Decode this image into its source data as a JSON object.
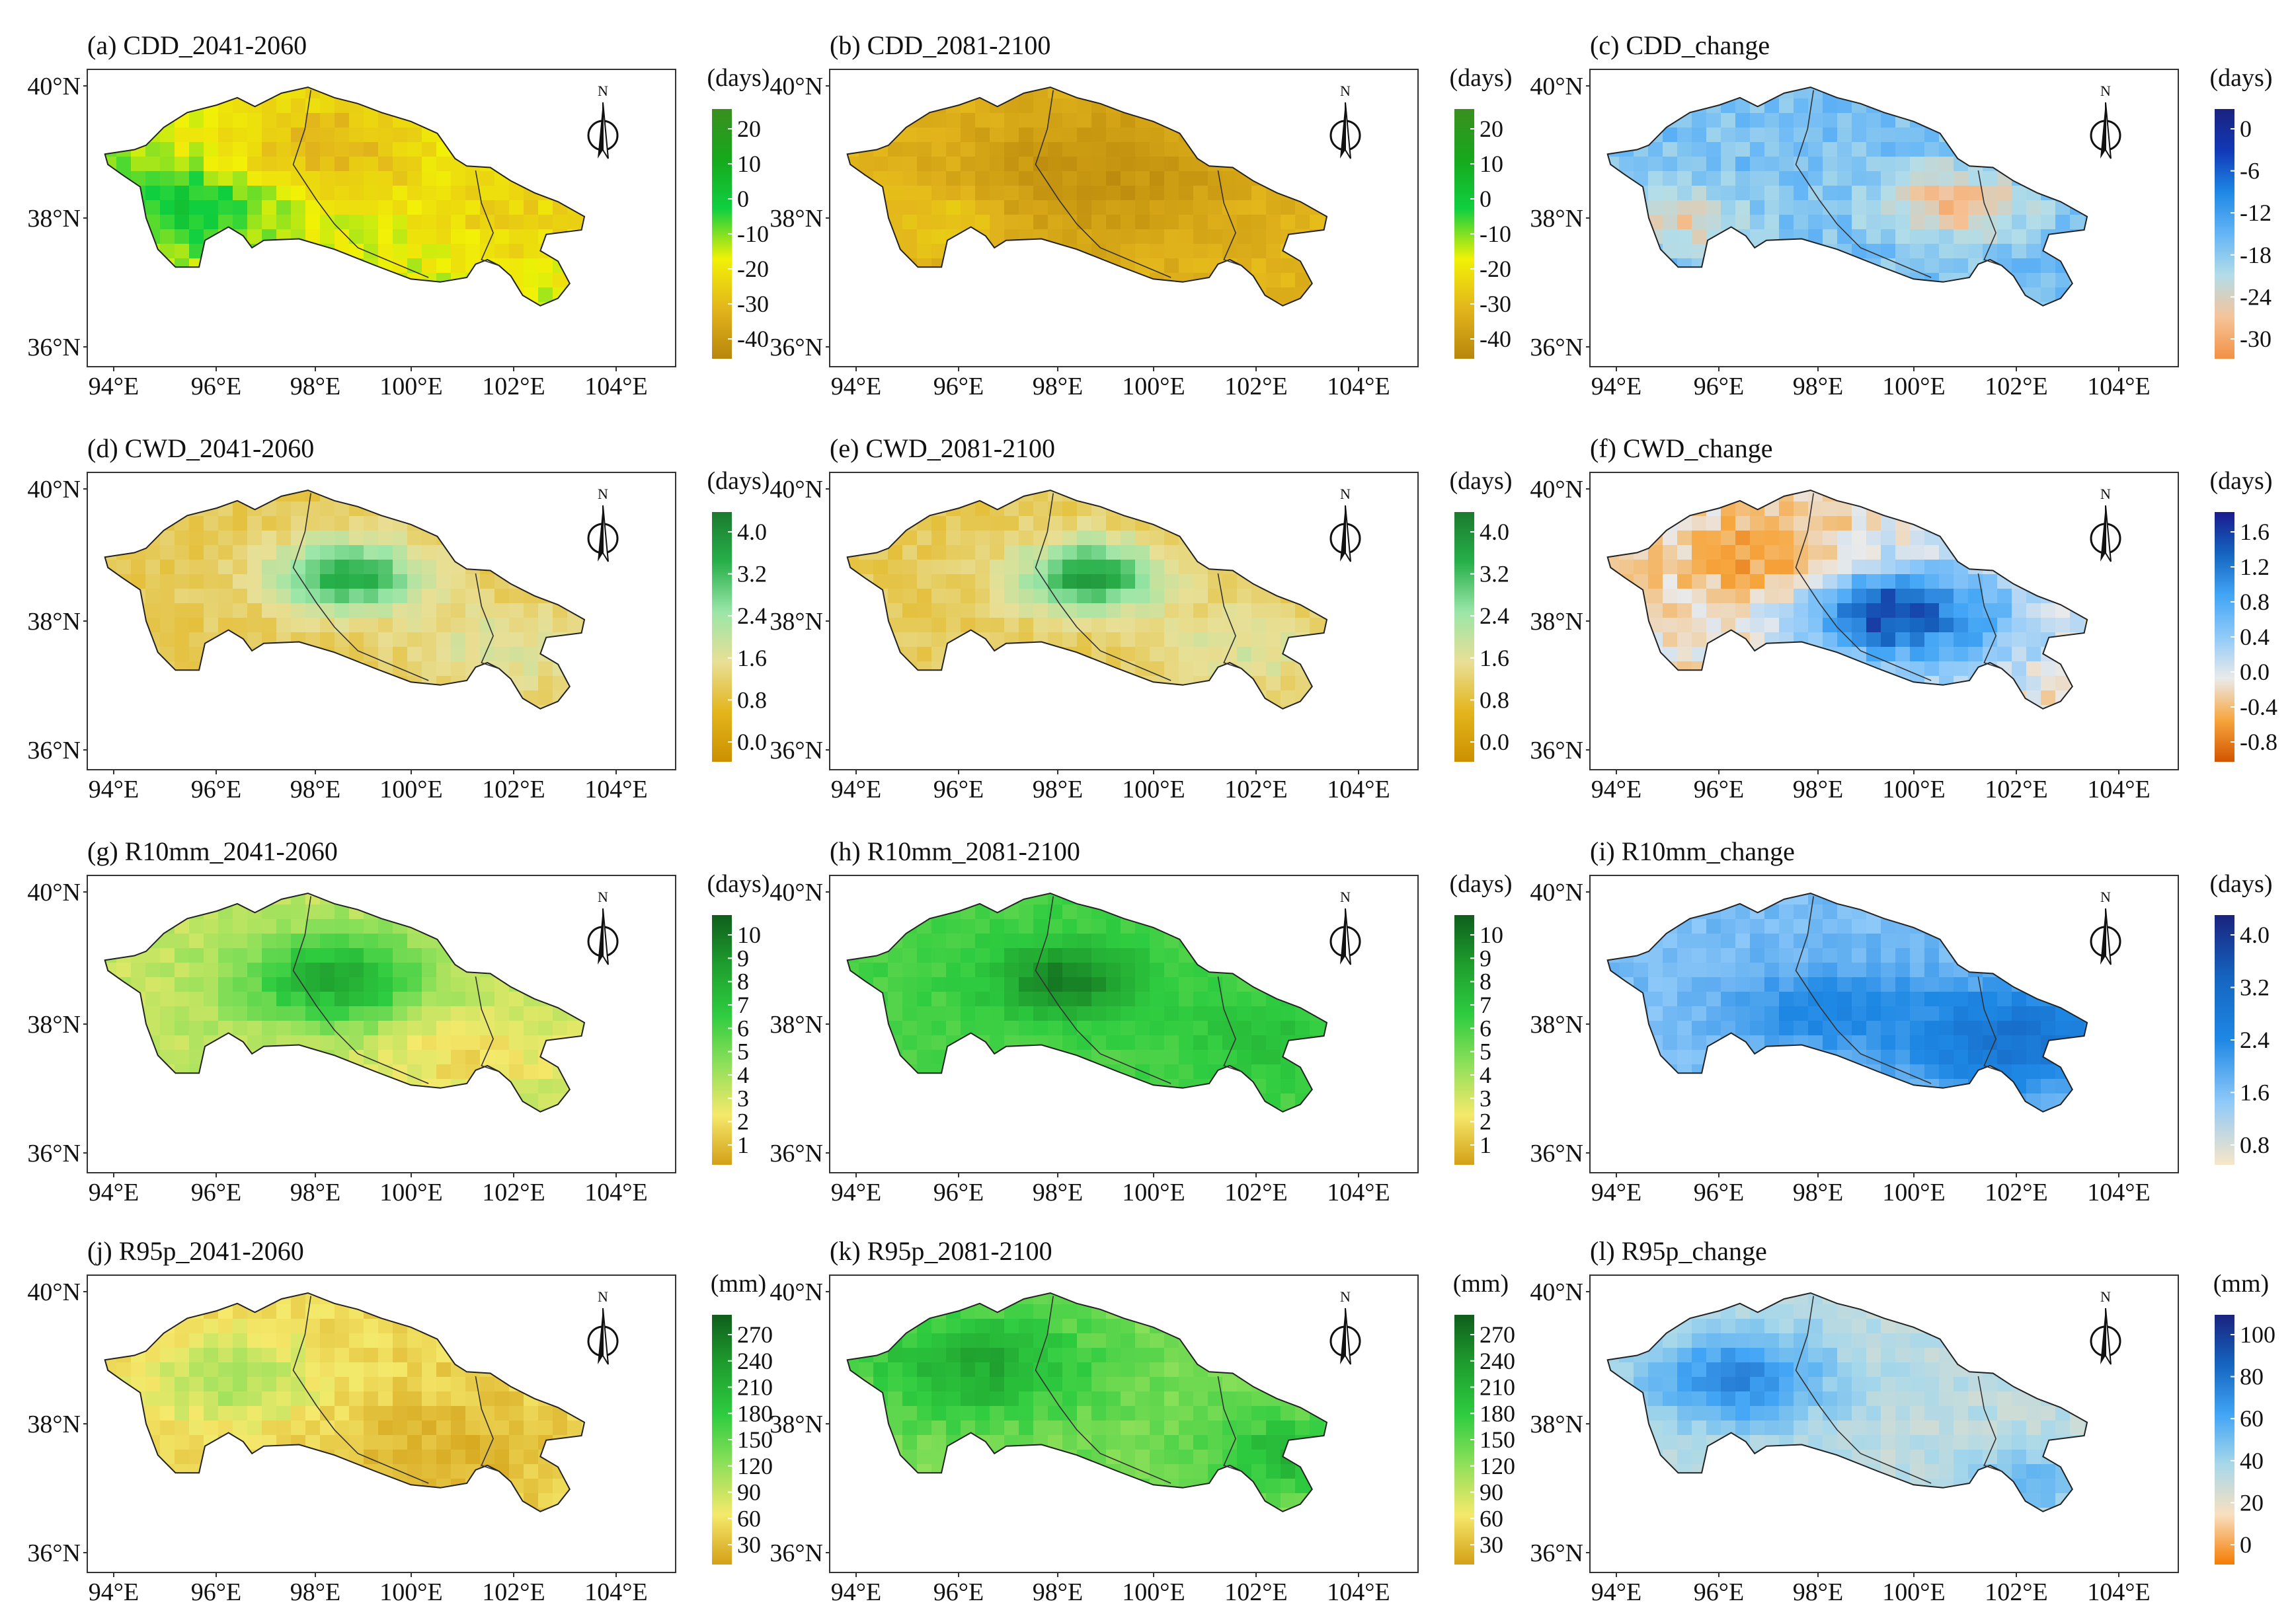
{
  "figure": {
    "lat_labels": [
      "40°N",
      "38°N",
      "36°N"
    ],
    "lon_labels": [
      "94°E",
      "96°E",
      "98°E",
      "100°E",
      "102°E",
      "104°E"
    ],
    "north_label": "N"
  },
  "colors": {
    "ext_dry": [
      "#3a8f1f",
      "#17a81c",
      "#10d040",
      "#f1f106",
      "#e3b51c",
      "#b8860b"
    ],
    "ext_cdd_change": [
      "#1a237e",
      "#1238b8",
      "#1e88e5",
      "#64b5f6",
      "#b3dde8",
      "#f5c49a",
      "#f29145"
    ],
    "ext_cwd": [
      "#1b7a2e",
      "#27b04a",
      "#9ae6a8",
      "#e8df96",
      "#e3b51c",
      "#cc9000"
    ],
    "ext_cwd_change": [
      "#1a1a8e",
      "#1565c0",
      "#42a5f5",
      "#90caf9",
      "#eaeaea",
      "#f7a63d",
      "#d35400"
    ],
    "ext_wet": [
      "#0f5e1c",
      "#1f9e2e",
      "#2ecc40",
      "#8fe05a",
      "#f5e96b",
      "#d4a017"
    ],
    "ext_wet_change": [
      "#1a237e",
      "#1565c0",
      "#1e88e5",
      "#90caf9",
      "#f8e6c8"
    ],
    "ext_r95_change": [
      "#1a237e",
      "#1565c0",
      "#42a5f5",
      "#a8d8ea",
      "#f8e0c0",
      "#f57c00"
    ]
  },
  "panels": [
    {
      "label": "(a) CDD_2041-2060",
      "unit": "(days)",
      "ticks": [
        "20",
        "10",
        "0",
        "-10",
        "-20",
        "-30",
        "-40"
      ],
      "palette": "ext_dry",
      "mode": "dry"
    },
    {
      "label": "(b) CDD_2081-2100",
      "unit": "(days)",
      "ticks": [
        "20",
        "10",
        "0",
        "-10",
        "-20",
        "-30",
        "-40"
      ],
      "palette": "ext_dry",
      "mode": "dry2"
    },
    {
      "label": "(c) CDD_change",
      "unit": "(days)",
      "ticks": [
        "0",
        "-6",
        "-12",
        "-18",
        "-24",
        "-30"
      ],
      "palette": "ext_cdd_change",
      "mode": "blue"
    },
    {
      "label": "(d) CWD_2041-2060",
      "unit": "(days)",
      "ticks": [
        "4.0",
        "3.2",
        "2.4",
        "1.6",
        "0.8",
        "0.0"
      ],
      "palette": "ext_cwd",
      "mode": "cwd"
    },
    {
      "label": "(e) CWD_2081-2100",
      "unit": "(days)",
      "ticks": [
        "4.0",
        "3.2",
        "2.4",
        "1.6",
        "0.8",
        "0.0"
      ],
      "palette": "ext_cwd",
      "mode": "cwd"
    },
    {
      "label": "(f) CWD_change",
      "unit": "(days)",
      "ticks": [
        "1.6",
        "1.2",
        "0.8",
        "0.4",
        "0.0",
        "-0.4",
        "-0.8"
      ],
      "palette": "ext_cwd_change",
      "mode": "cwdc"
    },
    {
      "label": "(g) R10mm_2041-2060",
      "unit": "(days)",
      "ticks": [
        "10",
        "9",
        "8",
        "7",
        "6",
        "5",
        "4",
        "3",
        "2",
        "1"
      ],
      "palette": "ext_wet",
      "mode": "wet"
    },
    {
      "label": "(h) R10mm_2081-2100",
      "unit": "(days)",
      "ticks": [
        "10",
        "9",
        "8",
        "7",
        "6",
        "5",
        "4",
        "3",
        "2",
        "1"
      ],
      "palette": "ext_wet",
      "mode": "wet2"
    },
    {
      "label": "(i) R10mm_change",
      "unit": "(days)",
      "ticks": [
        "4.0",
        "3.2",
        "2.4",
        "1.6",
        "0.8"
      ],
      "palette": "ext_wet_change",
      "mode": "bluelight"
    },
    {
      "label": "(j) R95p_2041-2060",
      "unit": "(mm)",
      "ticks": [
        "270",
        "240",
        "210",
        "180",
        "150",
        "120",
        "90",
        "60",
        "30"
      ],
      "palette": "ext_wet",
      "mode": "r95a"
    },
    {
      "label": "(k) R95p_2081-2100",
      "unit": "(mm)",
      "ticks": [
        "270",
        "240",
        "210",
        "180",
        "150",
        "120",
        "90",
        "60",
        "30"
      ],
      "palette": "ext_wet",
      "mode": "r95b"
    },
    {
      "label": "(l) R95p_change",
      "unit": "(mm)",
      "ticks": [
        "100",
        "80",
        "60",
        "40",
        "20",
        "0"
      ],
      "palette": "ext_r95_change",
      "mode": "r95c"
    }
  ]
}
